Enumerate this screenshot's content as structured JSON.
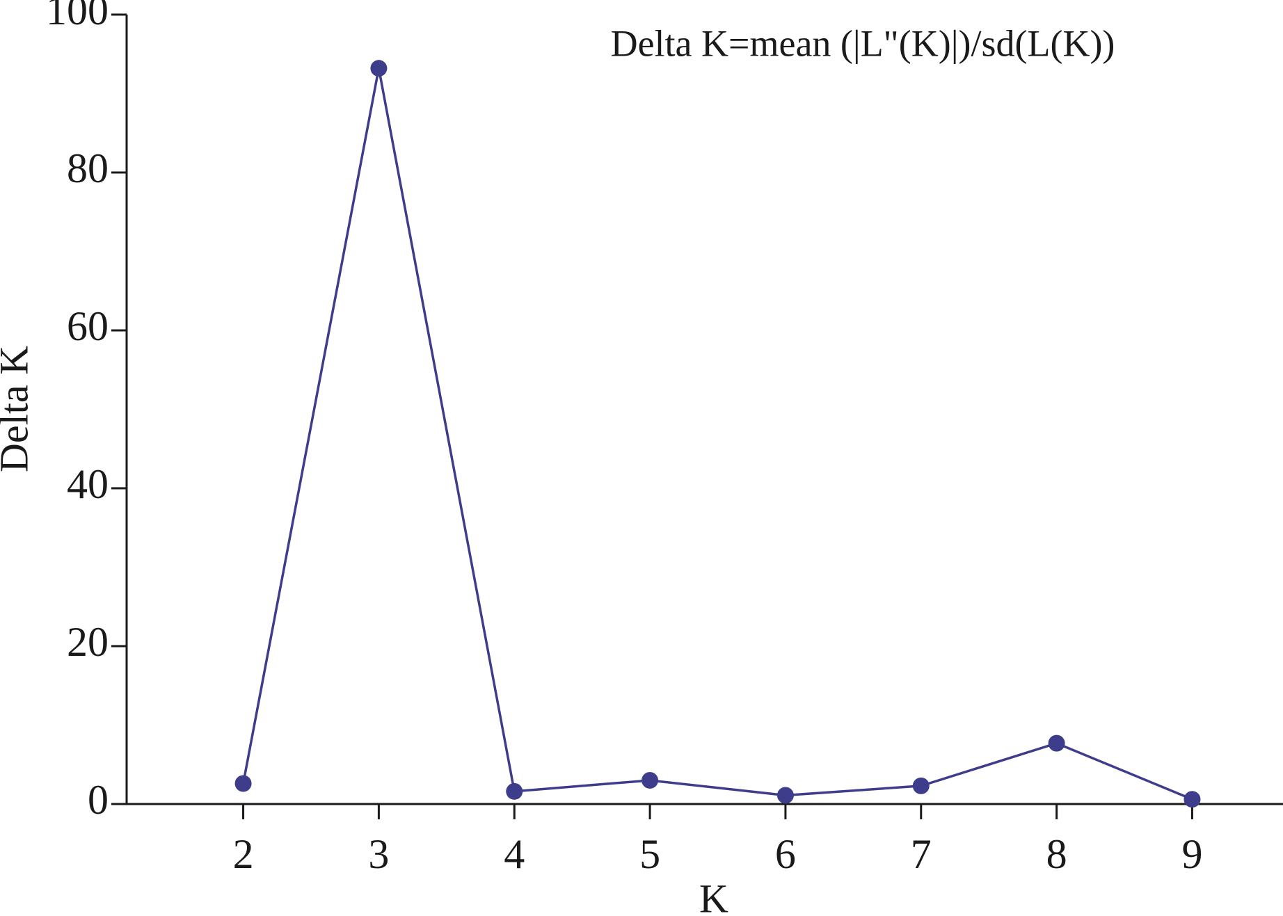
{
  "chart_data": {
    "type": "line",
    "annotation": "Delta K=mean (|L\"(K)|)/sd(L(K))",
    "xlabel": "K",
    "ylabel": "Delta K",
    "x": [
      2,
      3,
      4,
      5,
      6,
      7,
      8,
      9
    ],
    "series": [
      {
        "color": "#3d3d8c",
        "values": [
          2.6,
          93.2,
          1.6,
          3.0,
          1.1,
          2.3,
          7.7,
          0.6
        ]
      }
    ],
    "xlim": [
      1.14,
      9.67
    ],
    "xticks": [
      2,
      3,
      4,
      5,
      6,
      7,
      8,
      9
    ],
    "ylim": [
      0,
      100
    ],
    "yticks": [
      0,
      20,
      40,
      60,
      80,
      100
    ]
  }
}
